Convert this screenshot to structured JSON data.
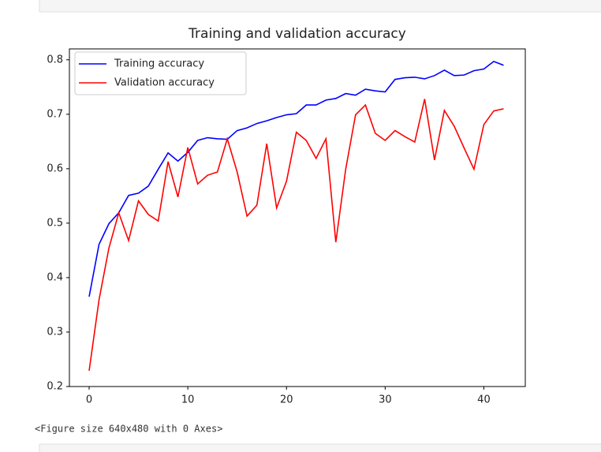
{
  "chart_data": {
    "type": "line",
    "title": "Training and validation accuracy",
    "x": [
      0,
      1,
      2,
      3,
      4,
      5,
      6,
      7,
      8,
      9,
      10,
      11,
      12,
      13,
      14,
      15,
      16,
      17,
      18,
      19,
      20,
      21,
      22,
      23,
      24,
      25,
      26,
      27,
      28,
      29,
      30,
      31,
      32,
      33,
      34,
      35,
      36,
      37,
      38,
      39,
      40,
      41,
      42
    ],
    "series": [
      {
        "name": "Training accuracy",
        "color": "#0000ff",
        "values": [
          0.365,
          0.461,
          0.499,
          0.519,
          0.551,
          0.555,
          0.568,
          0.599,
          0.629,
          0.614,
          0.63,
          0.652,
          0.657,
          0.655,
          0.654,
          0.67,
          0.675,
          0.683,
          0.688,
          0.694,
          0.699,
          0.701,
          0.717,
          0.717,
          0.726,
          0.729,
          0.738,
          0.735,
          0.746,
          0.743,
          0.741,
          0.764,
          0.767,
          0.768,
          0.765,
          0.771,
          0.781,
          0.771,
          0.772,
          0.78,
          0.783,
          0.797,
          0.79
        ]
      },
      {
        "name": "Validation accuracy",
        "color": "#ff0000",
        "values": [
          0.229,
          0.359,
          0.454,
          0.519,
          0.468,
          0.541,
          0.516,
          0.504,
          0.613,
          0.548,
          0.639,
          0.572,
          0.588,
          0.594,
          0.655,
          0.594,
          0.513,
          0.533,
          0.646,
          0.528,
          0.577,
          0.667,
          0.652,
          0.619,
          0.655,
          0.465,
          0.599,
          0.699,
          0.717,
          0.665,
          0.652,
          0.67,
          0.659,
          0.649,
          0.728,
          0.616,
          0.707,
          0.678,
          0.638,
          0.599,
          0.681,
          0.706,
          0.71
        ]
      }
    ],
    "xlim": [
      -2,
      44.2
    ],
    "ylim": [
      0.2,
      0.82
    ],
    "xticks": [
      0,
      10,
      20,
      30,
      40
    ],
    "yticks": [
      0.2,
      0.3,
      0.4,
      0.5,
      0.6,
      0.7,
      0.8
    ],
    "grid": false,
    "legend": "upper-left"
  },
  "output_text": "<Figure size 640x480 with 0 Axes>"
}
